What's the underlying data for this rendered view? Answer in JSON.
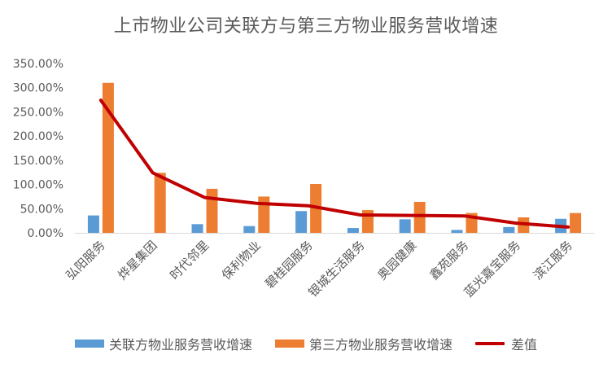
{
  "chart_data": {
    "type": "bar",
    "title": "上市物业公司关联方与第三方物业服务营收增速",
    "categories": [
      "弘阳服务",
      "烨星集团",
      "时代邻里",
      "保利物业",
      "碧桂园服务",
      "银城生活服务",
      "奥园健康",
      "鑫苑服务",
      "蓝光嘉宝服务",
      "滨江服务"
    ],
    "series": [
      {
        "name": "关联方物业服务营收增速",
        "kind": "bar",
        "color": "#5B9BD5",
        "values": [
          36,
          0,
          18,
          14,
          45,
          10,
          28,
          6,
          12,
          29
        ]
      },
      {
        "name": "第三方物业服务营收增速",
        "kind": "bar",
        "color": "#ED7D31",
        "values": [
          310,
          124,
          91,
          75,
          101,
          47,
          64,
          41,
          32,
          41
        ]
      },
      {
        "name": "差值",
        "kind": "line",
        "color": "#C00000",
        "values": [
          274,
          124,
          73,
          61,
          56,
          37,
          36,
          35,
          20,
          12
        ]
      }
    ],
    "ylim": [
      0,
      350
    ],
    "yticks": [
      "0.00%",
      "50.00%",
      "100.00%",
      "150.00%",
      "200.00%",
      "250.00%",
      "300.00%",
      "350.00%"
    ],
    "grid": false,
    "legend": "bottom"
  }
}
